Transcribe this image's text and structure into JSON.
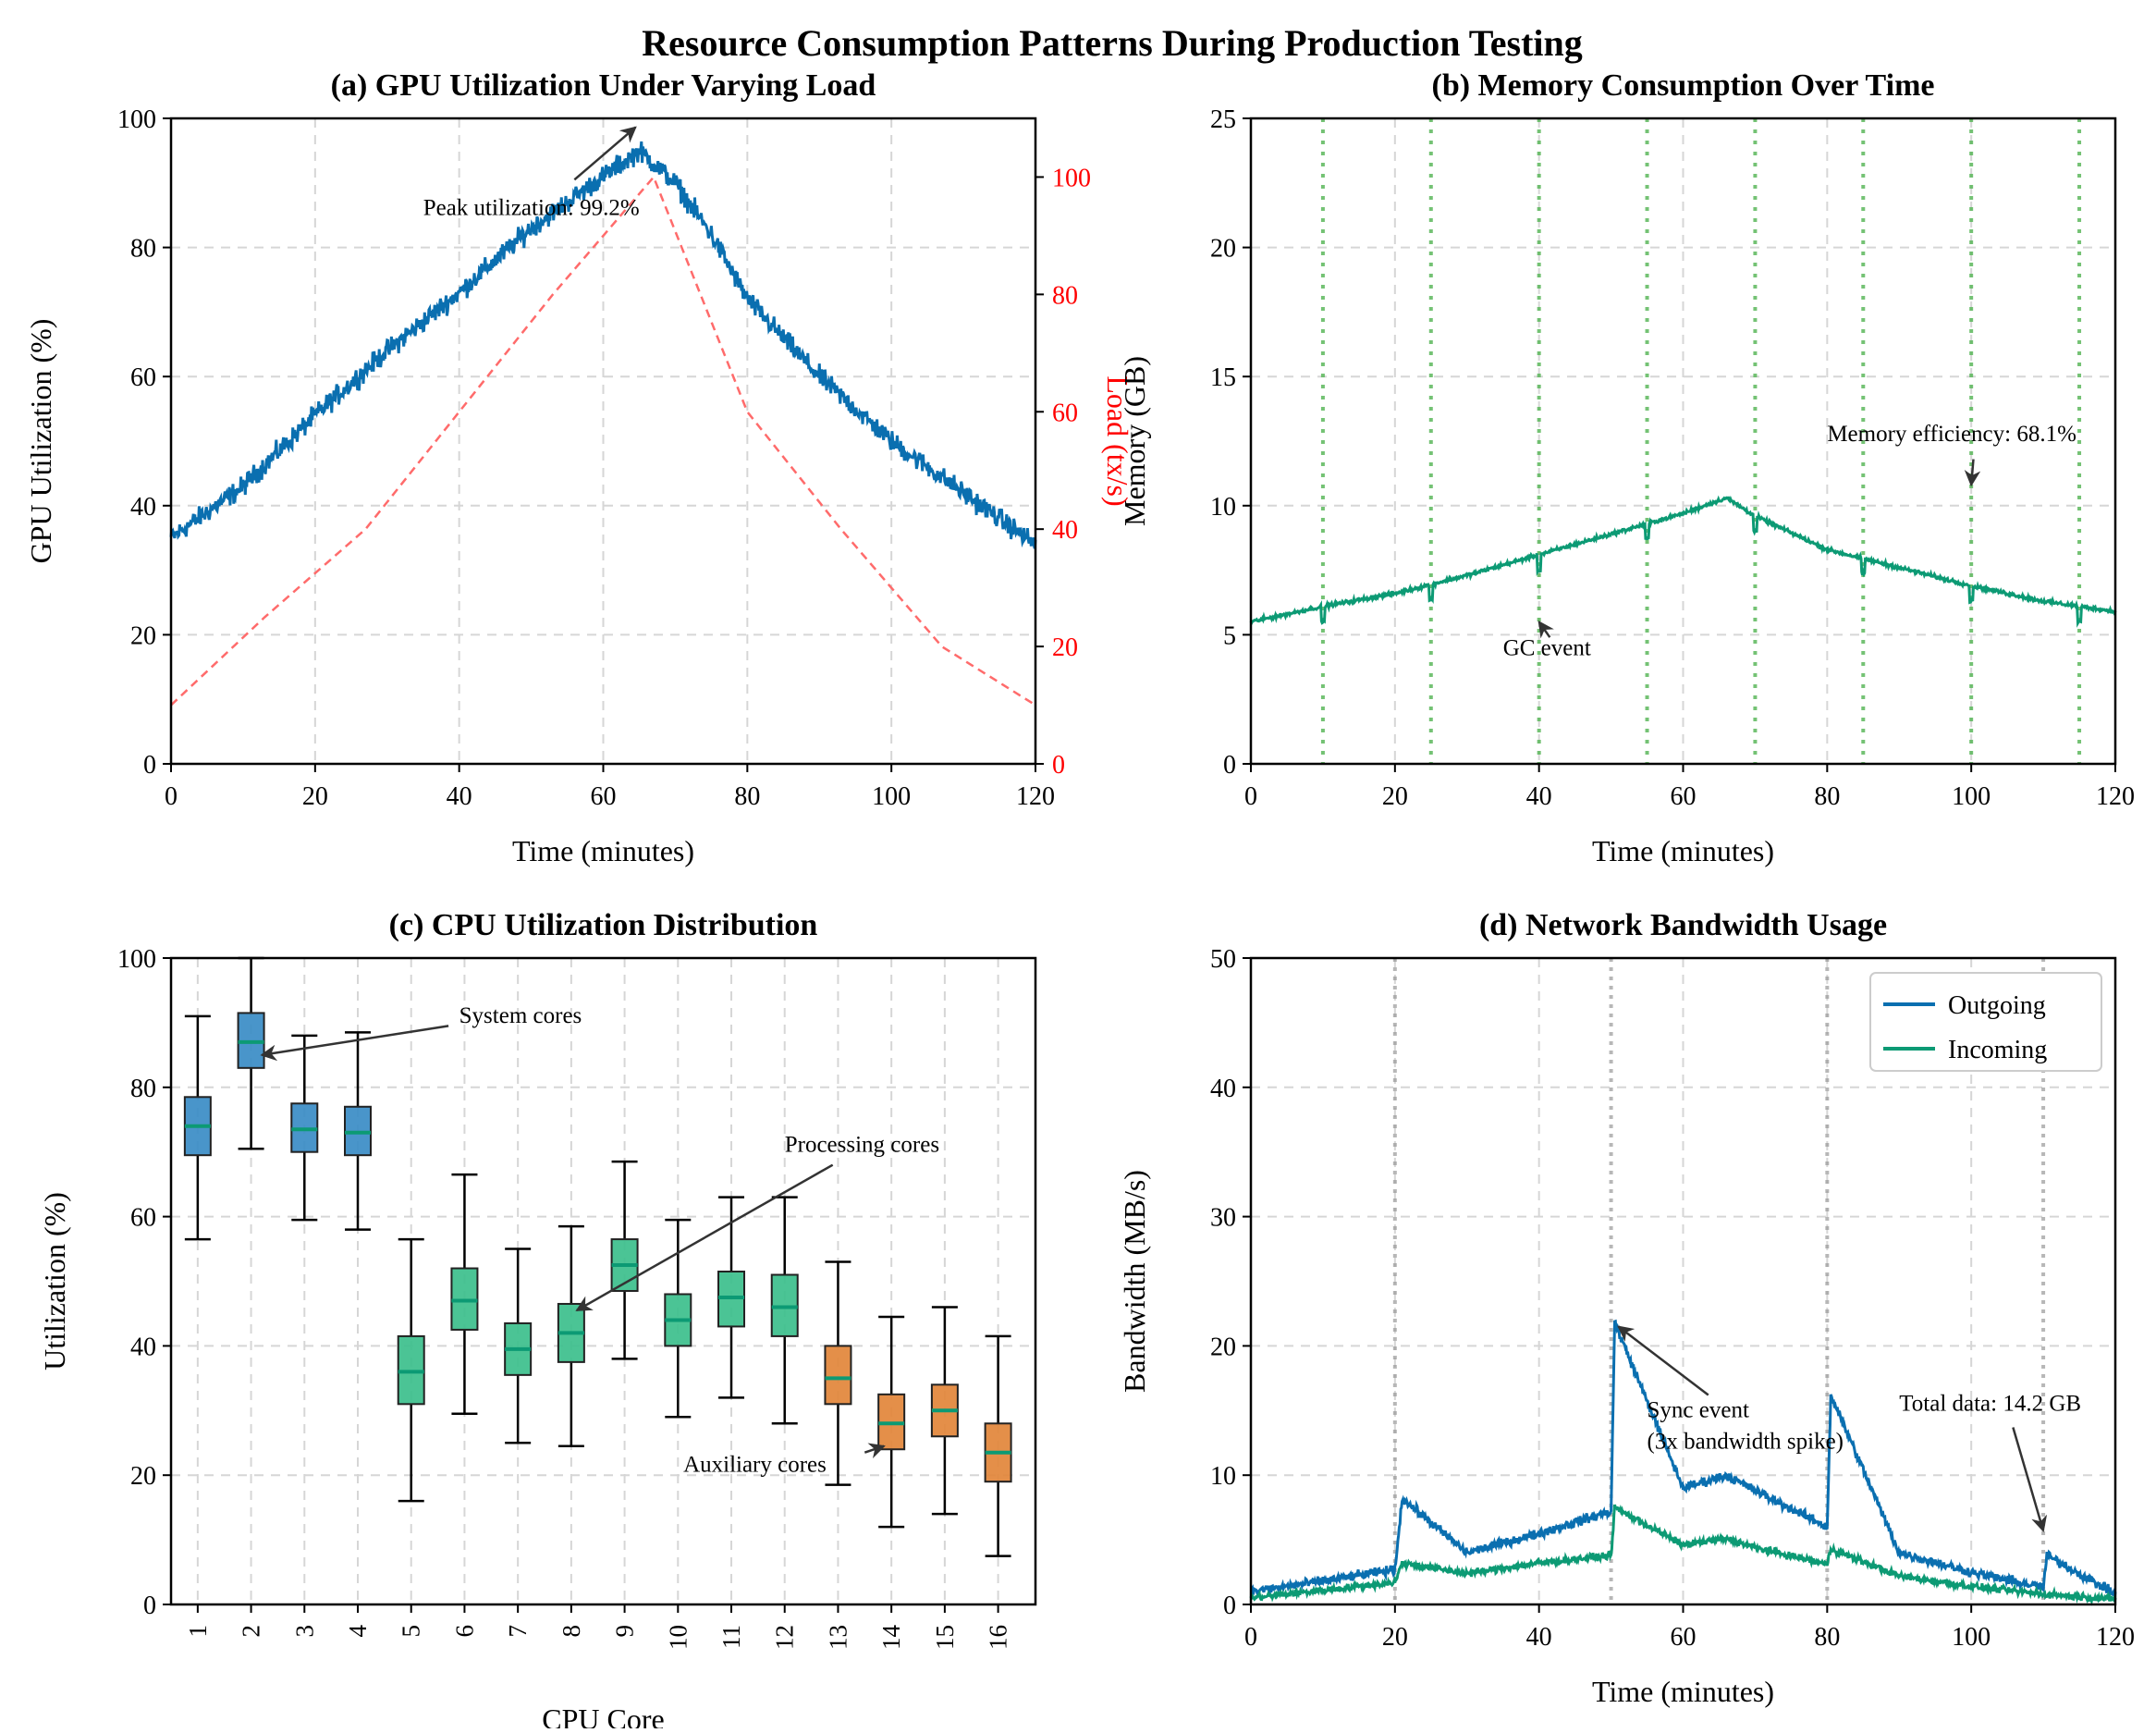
{
  "figure": {
    "suptitle": "Resource Consumption Patterns During Production Testing"
  },
  "colors": {
    "gpu_line": "#0a6fb0",
    "load_line": "#ff6b6b",
    "memory_line": "#0c9a74",
    "gc_line": "#5cb85c",
    "system_box": "#3a8cc6",
    "processing_box": "#3cbf8c",
    "auxiliary_box": "#e2853a",
    "median": "#0c9a74",
    "outgoing": "#0a6fb0",
    "incoming": "#0c9a74",
    "secondary_axis": "#ff0000"
  },
  "chart_data": [
    {
      "id": "a",
      "type": "line",
      "title": "(a) GPU Utilization Under Varying Load",
      "xlabel": "Time (minutes)",
      "ylabel": "GPU Utilization (%)",
      "y2label": "Load (tx/s)",
      "xlim": [
        0,
        120
      ],
      "ylim": [
        0,
        100
      ],
      "y2lim": [
        0,
        110
      ],
      "xticks": [
        "0",
        "20",
        "40",
        "60",
        "80",
        "100",
        "120"
      ],
      "yticks": [
        "0",
        "20",
        "40",
        "60",
        "80",
        "100"
      ],
      "y2ticks": [
        "0",
        "20",
        "40",
        "60",
        "80",
        "100"
      ],
      "grid": true,
      "series": [
        {
          "name": "GPU Utilization",
          "axis": "left",
          "x": [
            0,
            10,
            20,
            30,
            40,
            50,
            55,
            60,
            65,
            70,
            75,
            80,
            90,
            100,
            110,
            120
          ],
          "y": [
            35,
            43,
            54,
            64,
            73,
            83,
            87,
            91,
            95,
            90,
            82,
            72,
            60,
            50,
            42,
            34
          ]
        },
        {
          "name": "Load",
          "axis": "right",
          "style": "dashed",
          "x": [
            0,
            13,
            27,
            40,
            53,
            67,
            80,
            93,
            107,
            120
          ],
          "y": [
            10,
            25,
            40,
            60,
            80,
            100,
            60,
            40,
            20,
            10
          ]
        }
      ],
      "annotations": [
        {
          "text": "Peak utilization: 99.2%",
          "x": 35,
          "y": 85,
          "arrow_to": [
            65,
            99.2
          ]
        }
      ]
    },
    {
      "id": "b",
      "type": "line",
      "title": "(b) Memory Consumption Over Time",
      "xlabel": "Time (minutes)",
      "ylabel": "Memory (GB)",
      "xlim": [
        0,
        120
      ],
      "ylim": [
        0,
        25
      ],
      "xticks": [
        "0",
        "20",
        "40",
        "60",
        "80",
        "100",
        "120"
      ],
      "yticks": [
        "0",
        "5",
        "10",
        "15",
        "20",
        "25"
      ],
      "grid": true,
      "gc_events": [
        10,
        25,
        40,
        55,
        70,
        85,
        100,
        115
      ],
      "series": [
        {
          "name": "Memory",
          "x": [
            0,
            10,
            20,
            30,
            40,
            50,
            60,
            66,
            70,
            80,
            90,
            100,
            110,
            120
          ],
          "y": [
            5.5,
            6.1,
            6.6,
            7.3,
            8.1,
            8.9,
            9.7,
            10.3,
            9.6,
            8.3,
            7.6,
            6.9,
            6.3,
            5.9
          ]
        }
      ],
      "annotations": [
        {
          "text": "GC event",
          "x": 35,
          "y": 4.2,
          "arrow_to": [
            40,
            5.5
          ]
        },
        {
          "text": "Memory efficiency: 68.1%",
          "x": 80,
          "y": 12.5,
          "arrow_to": [
            100,
            10.8
          ]
        }
      ]
    },
    {
      "id": "c",
      "type": "box",
      "title": "(c) CPU Utilization Distribution",
      "xlabel": "CPU Core",
      "ylabel": "Utilization (%)",
      "ylim": [
        0,
        100
      ],
      "yticks": [
        "0",
        "20",
        "40",
        "60",
        "80",
        "100"
      ],
      "grid": true,
      "categories": [
        "1",
        "2",
        "3",
        "4",
        "5",
        "6",
        "7",
        "8",
        "9",
        "10",
        "11",
        "12",
        "13",
        "14",
        "15",
        "16"
      ],
      "groups": [
        "system",
        "system",
        "system",
        "system",
        "processing",
        "processing",
        "processing",
        "processing",
        "processing",
        "processing",
        "processing",
        "processing",
        "auxiliary",
        "auxiliary",
        "auxiliary",
        "auxiliary"
      ],
      "boxes": [
        {
          "whislo": 56.5,
          "q1": 69.5,
          "med": 74,
          "q3": 78.5,
          "whishi": 91
        },
        {
          "whislo": 70.5,
          "q1": 83,
          "med": 87,
          "q3": 91.5,
          "whishi": 100
        },
        {
          "whislo": 59.5,
          "q1": 70,
          "med": 73.5,
          "q3": 77.5,
          "whishi": 88
        },
        {
          "whislo": 58,
          "q1": 69.5,
          "med": 73,
          "q3": 77,
          "whishi": 88.5
        },
        {
          "whislo": 16,
          "q1": 31,
          "med": 36,
          "q3": 41.5,
          "whishi": 56.5
        },
        {
          "whislo": 29.5,
          "q1": 42.5,
          "med": 47,
          "q3": 52,
          "whishi": 66.5
        },
        {
          "whislo": 25,
          "q1": 35.5,
          "med": 39.5,
          "q3": 43.5,
          "whishi": 55
        },
        {
          "whislo": 24.5,
          "q1": 37.5,
          "med": 42,
          "q3": 46.5,
          "whishi": 58.5
        },
        {
          "whislo": 38,
          "q1": 48.5,
          "med": 52.5,
          "q3": 56.5,
          "whishi": 68.5
        },
        {
          "whislo": 29,
          "q1": 40,
          "med": 44,
          "q3": 48,
          "whishi": 59.5
        },
        {
          "whislo": 32,
          "q1": 43,
          "med": 47.5,
          "q3": 51.5,
          "whishi": 63
        },
        {
          "whislo": 28,
          "q1": 41.5,
          "med": 46,
          "q3": 51,
          "whishi": 63
        },
        {
          "whislo": 18.5,
          "q1": 31,
          "med": 35,
          "q3": 40,
          "whishi": 53
        },
        {
          "whislo": 12,
          "q1": 24,
          "med": 28,
          "q3": 32.5,
          "whishi": 44.5
        },
        {
          "whislo": 14,
          "q1": 26,
          "med": 30,
          "q3": 34,
          "whishi": 46
        },
        {
          "whislo": 7.5,
          "q1": 19,
          "med": 23.5,
          "q3": 28,
          "whishi": 41.5
        }
      ],
      "annotations": [
        {
          "text": "System cores",
          "x": 5.9,
          "y": 90,
          "arrow_to": [
            2.2,
            85
          ]
        },
        {
          "text": "Processing cores",
          "x": 12,
          "y": 70,
          "arrow_to": [
            8,
            45.5
          ]
        },
        {
          "text": "Auxiliary cores",
          "x": 10.1,
          "y": 20.5,
          "arrow_to": [
            14,
            24.5
          ]
        }
      ]
    },
    {
      "id": "d",
      "type": "line",
      "title": "(d) Network Bandwidth Usage",
      "xlabel": "Time (minutes)",
      "ylabel": "Bandwidth (MB/s)",
      "xlim": [
        0,
        120
      ],
      "ylim": [
        0,
        50
      ],
      "xticks": [
        "0",
        "20",
        "40",
        "60",
        "80",
        "100",
        "120"
      ],
      "yticks": [
        "0",
        "10",
        "20",
        "30",
        "40",
        "50"
      ],
      "grid": true,
      "legend": "top-right",
      "sync_events": [
        20,
        50,
        80,
        110
      ],
      "series": [
        {
          "name": "Outgoing",
          "x": [
            0,
            10,
            20,
            21,
            30,
            40,
            50,
            50.5,
            60,
            66,
            70,
            80,
            80.5,
            90,
            100,
            110,
            110.5,
            120
          ],
          "y": [
            1,
            1.8,
            2.7,
            8.2,
            4,
            5.5,
            7.2,
            21.8,
            9,
            10,
            8.8,
            6,
            16.2,
            4,
            2.5,
            1.3,
            3.8,
            0.8
          ]
        },
        {
          "name": "Incoming",
          "x": [
            0,
            10,
            20,
            21,
            30,
            40,
            50,
            50.5,
            60,
            66,
            70,
            80,
            80.5,
            90,
            100,
            110,
            120
          ],
          "y": [
            0.5,
            1.1,
            1.7,
            3.2,
            2.4,
            3.2,
            3.8,
            7.5,
            4.6,
            5.1,
            4.4,
            3.1,
            4.3,
            2.2,
            1.4,
            0.8,
            0.4
          ]
        }
      ],
      "annotations": [
        {
          "text": "Sync event",
          "text2": "(3x bandwidth spike)",
          "x": 55,
          "y": 14.5,
          "arrow_to": [
            50.5,
            21.5
          ]
        },
        {
          "text": "Total data: 14.2 GB",
          "x": 90,
          "y": 15,
          "arrow_to": [
            110,
            5.7
          ]
        }
      ]
    }
  ]
}
